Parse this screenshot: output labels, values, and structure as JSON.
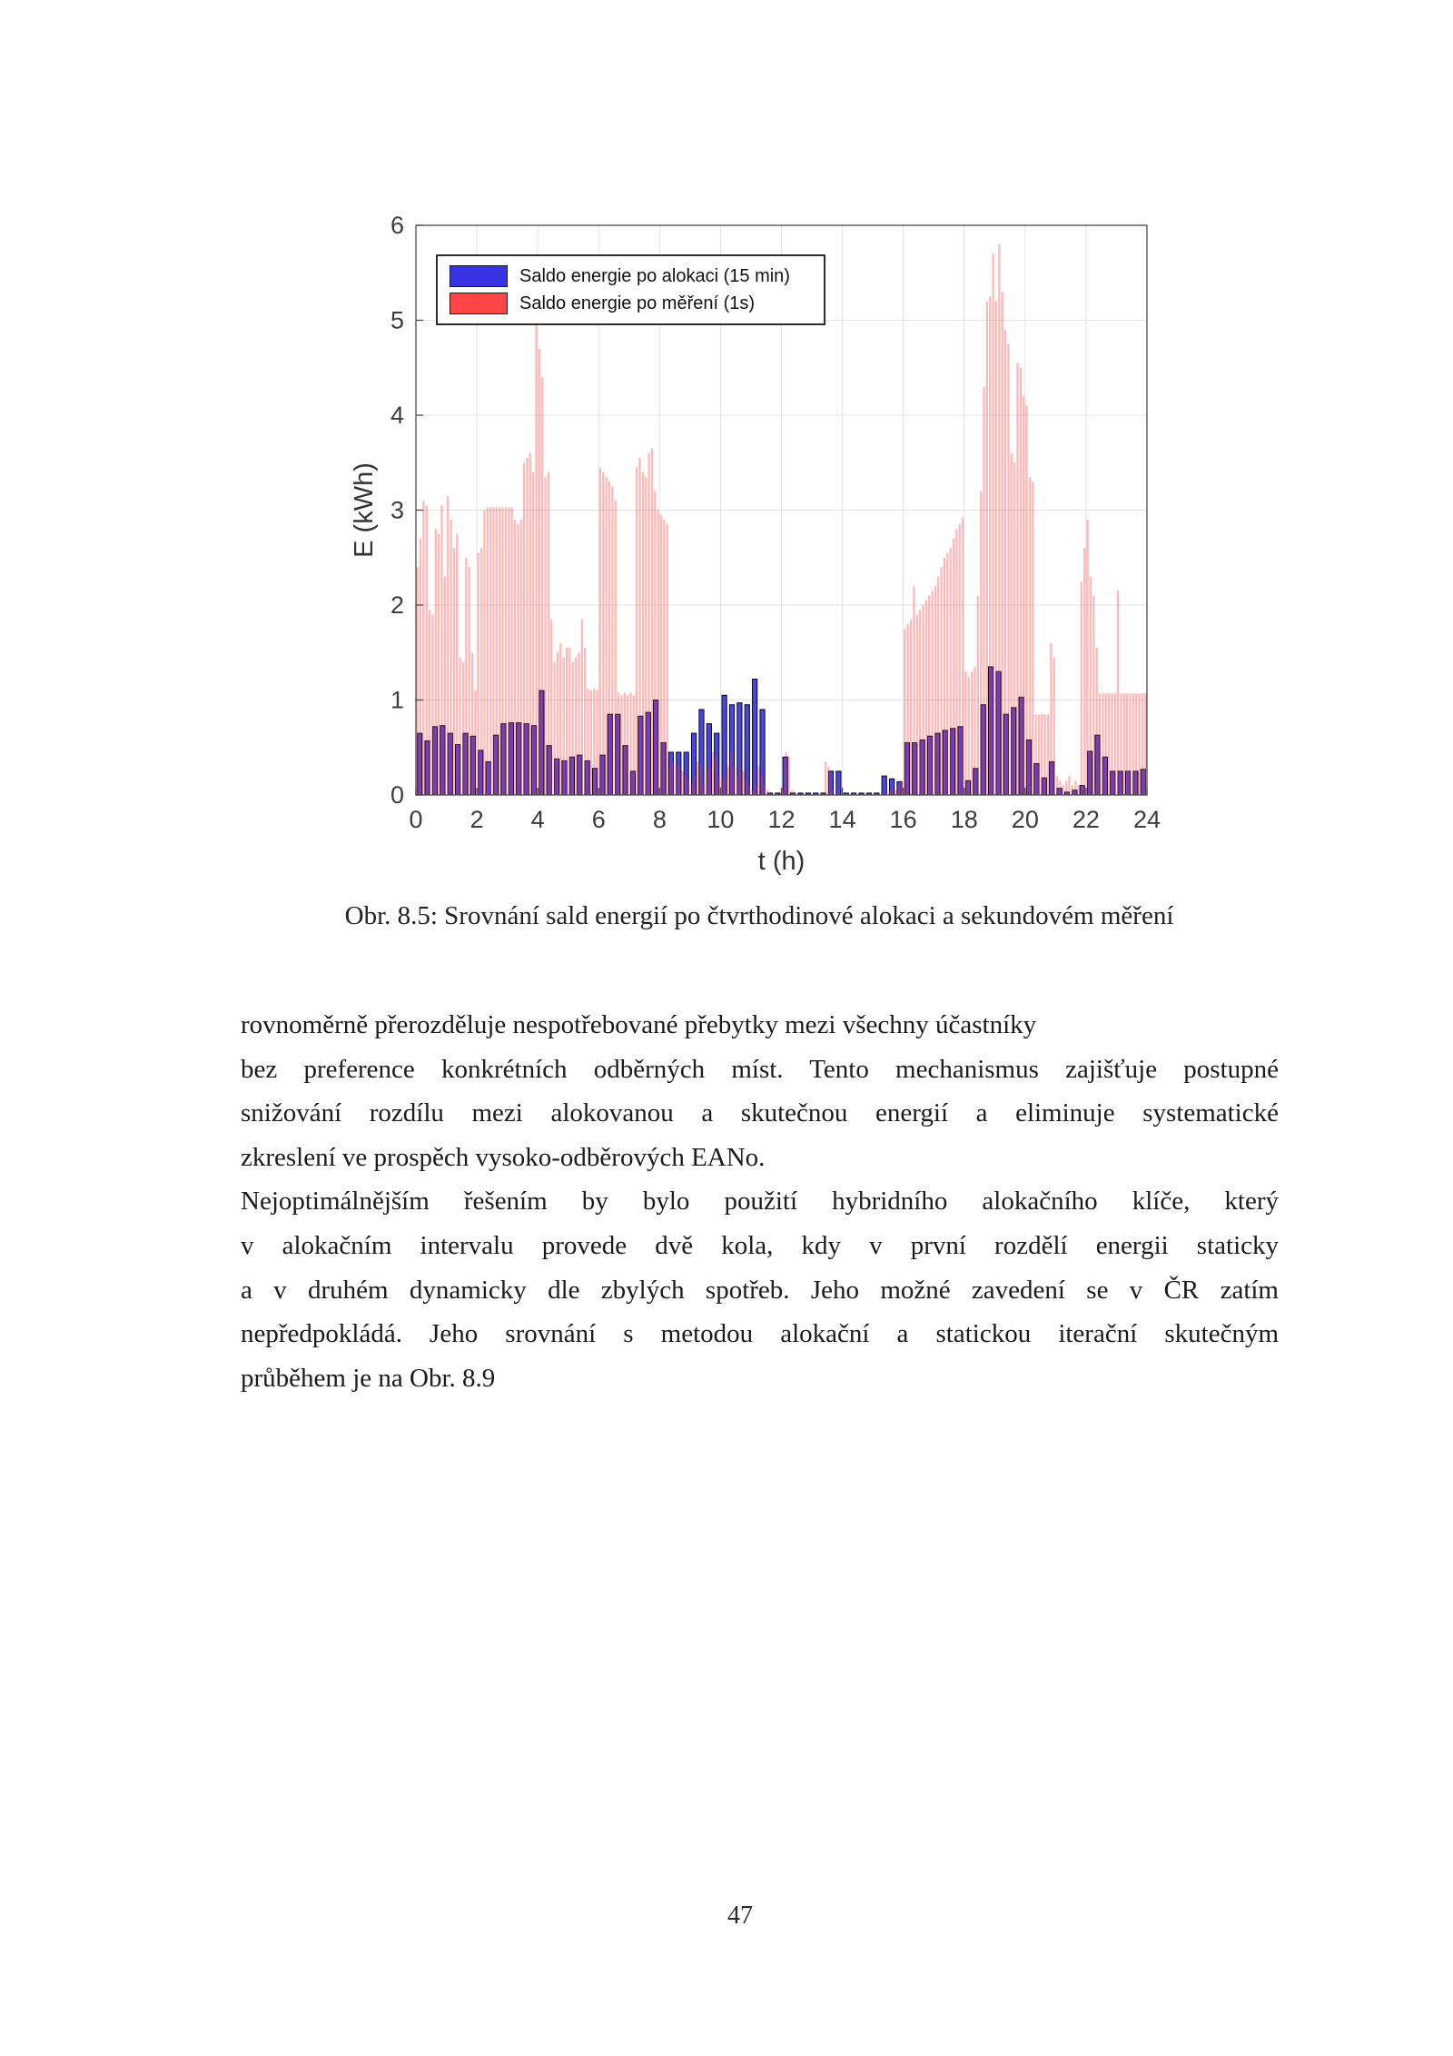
{
  "page": {
    "number": "47"
  },
  "figure": {
    "caption": "Obr. 8.5: Srovnání sald energií po čtvrthodinové alokaci a sekundovém měření"
  },
  "chart_data": {
    "type": "bar",
    "title": "",
    "xlabel": "t (h)",
    "ylabel": "E (kWh)",
    "xlim": [
      0,
      24
    ],
    "ylim": [
      0,
      6
    ],
    "xticks": [
      0,
      2,
      4,
      6,
      8,
      10,
      12,
      14,
      16,
      18,
      20,
      22,
      24
    ],
    "yticks": [
      0,
      1,
      2,
      3,
      4,
      5,
      6
    ],
    "grid": true,
    "legend_position": "top-left-inside",
    "colors": {
      "grid": "#e3e3e3",
      "box": "#4a4a4a",
      "tick_text": "#3d3d3d"
    },
    "series": [
      {
        "name": "Saldo energie po alokaci (15 min)",
        "color": "#3934e3",
        "edge": "#0a0a0a",
        "opacity": 0.92,
        "interval_h": 0.25,
        "values": [
          0.65,
          0.57,
          0.72,
          0.73,
          0.65,
          0.53,
          0.65,
          0.62,
          0.47,
          0.35,
          0.63,
          0.75,
          0.76,
          0.76,
          0.75,
          0.73,
          1.1,
          0.52,
          0.38,
          0.36,
          0.4,
          0.42,
          0.36,
          0.28,
          0.42,
          0.85,
          0.85,
          0.52,
          0.25,
          0.83,
          0.87,
          1.0,
          0.55,
          0.45,
          0.45,
          0.45,
          0.65,
          0.9,
          0.75,
          0.65,
          1.05,
          0.95,
          0.97,
          0.95,
          1.22,
          0.9,
          0.02,
          0.02,
          0.4,
          0.02,
          0.02,
          0.02,
          0.02,
          0.02,
          0.25,
          0.25,
          0.02,
          0.02,
          0.02,
          0.02,
          0.02,
          0.2,
          0.17,
          0.14,
          0.55,
          0.55,
          0.58,
          0.62,
          0.65,
          0.68,
          0.7,
          0.72,
          0.15,
          0.28,
          0.95,
          1.35,
          1.3,
          0.85,
          0.92,
          1.03,
          0.58,
          0.33,
          0.18,
          0.35,
          0.07,
          0.03,
          0.05,
          0.1,
          0.46,
          0.63,
          0.4,
          0.25,
          0.25,
          0.25,
          0.25,
          0.27
        ]
      },
      {
        "name": "Saldo energie po měření (1s)",
        "color": "#ff3333",
        "edge": "none",
        "opacity": 0.34,
        "interval_h": 0.1,
        "values": [
          2.4,
          2.7,
          3.1,
          3.05,
          1.95,
          1.9,
          2.8,
          2.75,
          3.05,
          2.3,
          3.15,
          2.9,
          2.6,
          2.75,
          1.45,
          1.4,
          2.5,
          2.4,
          1.5,
          1.1,
          2.55,
          2.6,
          3.0,
          3.03,
          3.03,
          3.03,
          3.03,
          3.03,
          3.03,
          3.03,
          3.03,
          3.03,
          2.9,
          2.85,
          2.9,
          3.5,
          3.55,
          3.6,
          3.4,
          5.2,
          4.7,
          4.4,
          3.35,
          3.4,
          1.85,
          1.4,
          1.5,
          1.6,
          1.45,
          1.55,
          1.55,
          1.4,
          1.45,
          1.5,
          1.85,
          1.55,
          1.12,
          1.1,
          1.12,
          1.1,
          3.45,
          3.4,
          3.35,
          3.3,
          3.25,
          3.1,
          1.08,
          1.05,
          1.08,
          1.05,
          1.08,
          1.05,
          3.45,
          3.55,
          3.4,
          3.35,
          3.6,
          3.65,
          3.2,
          3.0,
          2.95,
          2.9,
          2.85,
          0.3,
          0.35,
          0.3,
          0.3,
          0.25,
          0.2,
          0.15,
          0.1,
          0.2,
          0.35,
          0.3,
          0.1,
          0.25,
          0.3,
          0.45,
          0.4,
          0.2,
          0.15,
          0.2,
          0.3,
          0.45,
          0.3,
          0.2,
          0.3,
          0.25,
          0.15,
          0.1,
          0.05,
          0.1,
          0.3,
          0.2,
          0.1,
          0.05,
          0,
          0,
          0,
          0,
          0.05,
          0.45,
          0.4,
          0.05,
          0,
          0,
          0,
          0,
          0,
          0,
          0,
          0,
          0,
          0,
          0.35,
          0.3,
          0.05,
          0,
          0,
          0,
          0,
          0,
          0,
          0,
          0,
          0,
          0,
          0,
          0,
          0,
          0,
          0,
          0,
          0,
          0,
          0.05,
          0.05,
          0.05,
          0.1,
          0.15,
          1.75,
          1.8,
          1.85,
          2.2,
          1.9,
          1.95,
          2.0,
          2.05,
          2.1,
          2.15,
          2.2,
          2.3,
          2.4,
          2.5,
          2.55,
          2.6,
          2.7,
          2.8,
          2.85,
          2.92,
          1.3,
          1.25,
          1.3,
          1.35,
          2.1,
          3.2,
          4.3,
          5.2,
          5.25,
          5.7,
          5.2,
          5.8,
          5.3,
          4.9,
          4.75,
          3.6,
          3.5,
          4.55,
          4.5,
          4.2,
          4.1,
          3.35,
          3.3,
          0.85,
          0.85,
          0.85,
          0.85,
          0.85,
          1.6,
          1.45,
          0.2,
          0.15,
          0.1,
          0.15,
          0.2,
          0.1,
          0.15,
          0.1,
          2.25,
          2.6,
          2.9,
          2.3,
          2.1,
          1.55,
          1.07,
          1.07,
          1.07,
          1.07,
          1.07,
          1.07,
          2.15,
          1.07,
          1.07,
          1.07,
          1.07,
          1.07,
          1.07,
          1.07,
          1.07,
          1.07
        ]
      }
    ]
  },
  "body": {
    "lines": [
      {
        "text": "rovnoměrně přerozděluje nespotřebované přebytky mezi všechny účastníky"
      },
      {
        "text": "bez preference konkrétních odběrných míst. Tento mechanismus zajišťuje postupné"
      },
      {
        "text": "snižování rozdílu mezi alokovanou a skutečnou energií a eliminuje systematické"
      },
      {
        "text": "zkreslení ve prospěch vysoko-odběrových EANo."
      },
      {
        "text": "Nejoptimálnějším řešením by bylo použití hybridního alokačního klíče, který"
      },
      {
        "text": "v alokačním intervalu provede dvě kola, kdy v první rozdělí energii staticky"
      },
      {
        "text": "a v druhém dynamicky dle zbylých spotřeb. Jeho možné zavedení se v ČR zatím"
      },
      {
        "text": "nepředpokládá. Jeho srovnání s metodou alokační a statickou iterační skutečným"
      },
      {
        "text": "průběhem je na Obr. 8.9"
      }
    ]
  }
}
